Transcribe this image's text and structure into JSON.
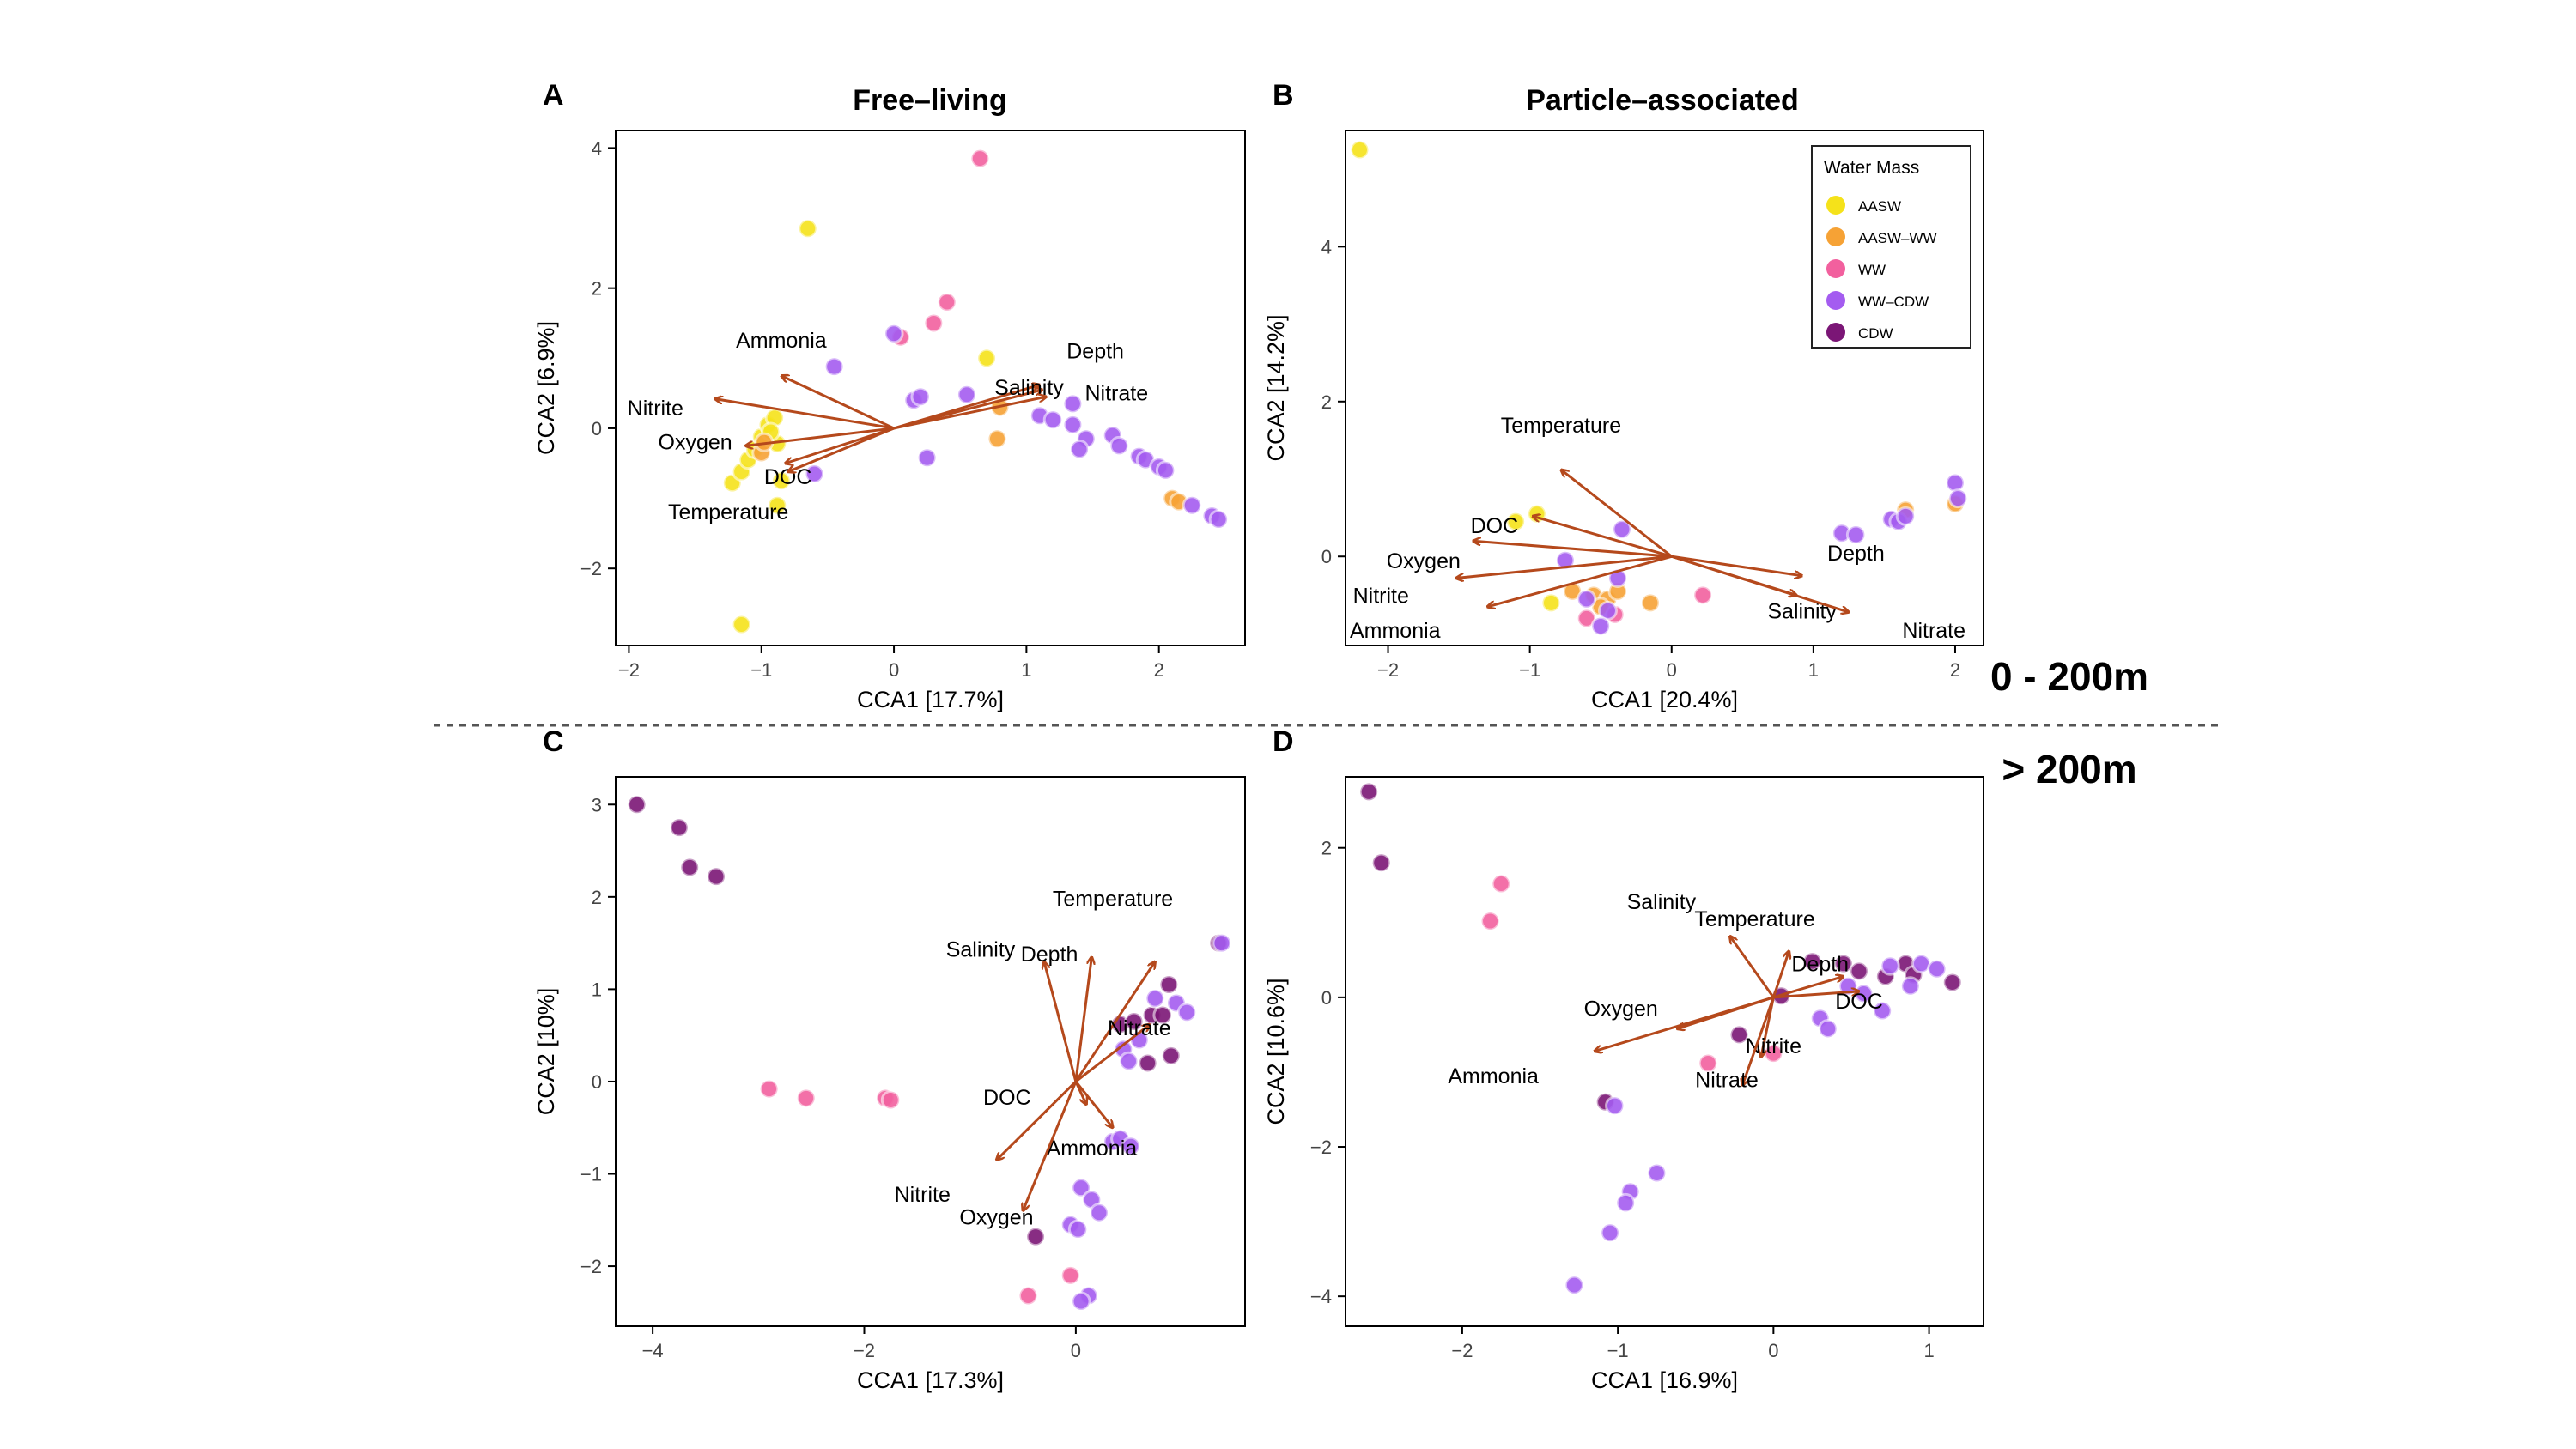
{
  "figure": {
    "column_titles": [
      "Free–living",
      "Particle–associated"
    ],
    "depth_labels": [
      "0 - 200m",
      "> 200m"
    ]
  },
  "legend": {
    "title": "Water Mass",
    "placement": "top-right of panel B",
    "entries": [
      {
        "label": "AASW",
        "color": "#f5e21a"
      },
      {
        "label": "AASW–WW",
        "color": "#f6a235"
      },
      {
        "label": "WW",
        "color": "#f2609e"
      },
      {
        "label": "WW–CDW",
        "color": "#a45cf0"
      },
      {
        "label": "CDW",
        "color": "#7b1676"
      }
    ]
  },
  "chart_data": [
    {
      "panel": "A",
      "type": "scatter",
      "xlabel": "CCA1   [17.7%]",
      "ylabel": "CCA2   [6.9%]",
      "xlim": [
        -2.1,
        2.65
      ],
      "ylim": [
        -3.1,
        4.25
      ],
      "xticks": [
        -2,
        -1,
        0,
        1,
        2
      ],
      "yticks": [
        -2,
        0,
        2,
        4
      ],
      "points": [
        {
          "x": -1.22,
          "y": -0.78,
          "g": "AASW"
        },
        {
          "x": -1.15,
          "y": -0.62,
          "g": "AASW"
        },
        {
          "x": -1.1,
          "y": -0.45,
          "g": "AASW"
        },
        {
          "x": -1.05,
          "y": -0.3,
          "g": "AASW"
        },
        {
          "x": -1.0,
          "y": -0.12,
          "g": "AASW"
        },
        {
          "x": -0.95,
          "y": 0.05,
          "g": "AASW"
        },
        {
          "x": -0.9,
          "y": 0.15,
          "g": "AASW"
        },
        {
          "x": -0.88,
          "y": -0.22,
          "g": "AASW"
        },
        {
          "x": -0.93,
          "y": -0.05,
          "g": "AASW"
        },
        {
          "x": -0.88,
          "y": -1.1,
          "g": "AASW"
        },
        {
          "x": -0.85,
          "y": -0.75,
          "g": "AASW"
        },
        {
          "x": -1.15,
          "y": -2.8,
          "g": "AASW"
        },
        {
          "x": -0.65,
          "y": 2.85,
          "g": "AASW"
        },
        {
          "x": 0.7,
          "y": 1.0,
          "g": "AASW"
        },
        {
          "x": -1.0,
          "y": -0.35,
          "g": "AASW-WW"
        },
        {
          "x": -0.98,
          "y": -0.2,
          "g": "AASW-WW"
        },
        {
          "x": 0.8,
          "y": 0.3,
          "g": "AASW-WW"
        },
        {
          "x": 0.78,
          "y": -0.15,
          "g": "AASW-WW"
        },
        {
          "x": 2.1,
          "y": -1.0,
          "g": "AASW-WW"
        },
        {
          "x": 2.15,
          "y": -1.05,
          "g": "AASW-WW"
        },
        {
          "x": 0.65,
          "y": 3.85,
          "g": "WW"
        },
        {
          "x": 0.4,
          "y": 1.8,
          "g": "WW"
        },
        {
          "x": 0.3,
          "y": 1.5,
          "g": "WW"
        },
        {
          "x": 0.05,
          "y": 1.3,
          "g": "WW"
        },
        {
          "x": -0.45,
          "y": 0.88,
          "g": "WW-CDW"
        },
        {
          "x": 0.0,
          "y": 1.35,
          "g": "WW-CDW"
        },
        {
          "x": 0.15,
          "y": 0.4,
          "g": "WW-CDW"
        },
        {
          "x": 0.2,
          "y": 0.45,
          "g": "WW-CDW"
        },
        {
          "x": 0.25,
          "y": -0.42,
          "g": "WW-CDW"
        },
        {
          "x": -0.6,
          "y": -0.65,
          "g": "WW-CDW"
        },
        {
          "x": 0.55,
          "y": 0.48,
          "g": "WW-CDW"
        },
        {
          "x": 1.1,
          "y": 0.18,
          "g": "WW-CDW"
        },
        {
          "x": 1.2,
          "y": 0.12,
          "g": "WW-CDW"
        },
        {
          "x": 1.35,
          "y": 0.05,
          "g": "WW-CDW"
        },
        {
          "x": 1.45,
          "y": -0.15,
          "g": "WW-CDW"
        },
        {
          "x": 1.65,
          "y": -0.1,
          "g": "WW-CDW"
        },
        {
          "x": 1.7,
          "y": -0.25,
          "g": "WW-CDW"
        },
        {
          "x": 1.85,
          "y": -0.4,
          "g": "WW-CDW"
        },
        {
          "x": 1.9,
          "y": -0.45,
          "g": "WW-CDW"
        },
        {
          "x": 2.0,
          "y": -0.55,
          "g": "WW-CDW"
        },
        {
          "x": 2.05,
          "y": -0.6,
          "g": "WW-CDW"
        },
        {
          "x": 2.25,
          "y": -1.1,
          "g": "WW-CDW"
        },
        {
          "x": 2.4,
          "y": -1.25,
          "g": "WW-CDW"
        },
        {
          "x": 2.45,
          "y": -1.3,
          "g": "WW-CDW"
        },
        {
          "x": 1.35,
          "y": 0.35,
          "g": "WW-CDW"
        },
        {
          "x": 1.4,
          "y": -0.3,
          "g": "WW-CDW"
        }
      ],
      "arrows": [
        {
          "name": "Ammonia",
          "x": -0.85,
          "y": 0.75,
          "lx": -0.85,
          "ly": 1.15
        },
        {
          "name": "Nitrite",
          "x": -1.35,
          "y": 0.42,
          "lx": -1.8,
          "ly": 0.18
        },
        {
          "name": "Oxygen",
          "x": -1.12,
          "y": -0.25,
          "lx": -1.5,
          "ly": -0.3
        },
        {
          "name": "DOC",
          "x": -0.82,
          "y": -0.5,
          "lx": -0.8,
          "ly": -0.8
        },
        {
          "name": "Temperature",
          "x": -0.8,
          "y": -0.62,
          "lx": -1.25,
          "ly": -1.3
        },
        {
          "name": "Depth",
          "x": 1.1,
          "y": 0.62,
          "lx": 1.52,
          "ly": 1.0
        },
        {
          "name": "Salinity",
          "x": 1.12,
          "y": 0.55,
          "lx": 1.02,
          "ly": 0.48
        },
        {
          "name": "Nitrate",
          "x": 1.15,
          "y": 0.45,
          "lx": 1.68,
          "ly": 0.4
        }
      ]
    },
    {
      "panel": "B",
      "type": "scatter",
      "xlabel": "CCA1   [20.4%]",
      "ylabel": "CCA2   [14.2%]",
      "xlim": [
        -2.3,
        2.2
      ],
      "ylim": [
        -1.15,
        5.5
      ],
      "xticks": [
        -2,
        -1,
        0,
        1,
        2
      ],
      "yticks": [
        0,
        2,
        4
      ],
      "points": [
        {
          "x": -2.2,
          "y": 5.25,
          "g": "AASW"
        },
        {
          "x": -0.95,
          "y": 0.55,
          "g": "AASW"
        },
        {
          "x": -1.1,
          "y": 0.45,
          "g": "AASW"
        },
        {
          "x": -0.85,
          "y": -0.6,
          "g": "AASW"
        },
        {
          "x": -0.7,
          "y": -0.45,
          "g": "AASW-WW"
        },
        {
          "x": -0.55,
          "y": -0.5,
          "g": "AASW-WW"
        },
        {
          "x": -0.45,
          "y": -0.55,
          "g": "AASW-WW"
        },
        {
          "x": -0.38,
          "y": -0.45,
          "g": "AASW-WW"
        },
        {
          "x": -0.15,
          "y": -0.6,
          "g": "AASW-WW"
        },
        {
          "x": -0.5,
          "y": -0.65,
          "g": "AASW-WW"
        },
        {
          "x": 1.65,
          "y": 0.6,
          "g": "AASW-WW"
        },
        {
          "x": 2.0,
          "y": 0.68,
          "g": "AASW-WW"
        },
        {
          "x": 0.22,
          "y": -0.5,
          "g": "WW"
        },
        {
          "x": -0.4,
          "y": -0.75,
          "g": "WW"
        },
        {
          "x": -0.6,
          "y": -0.8,
          "g": "WW"
        },
        {
          "x": -0.75,
          "y": -0.05,
          "g": "WW-CDW"
        },
        {
          "x": -0.35,
          "y": 0.35,
          "g": "WW-CDW"
        },
        {
          "x": -0.6,
          "y": -0.55,
          "g": "WW-CDW"
        },
        {
          "x": -0.45,
          "y": -0.7,
          "g": "WW-CDW"
        },
        {
          "x": -0.5,
          "y": -0.9,
          "g": "WW-CDW"
        },
        {
          "x": -0.38,
          "y": -0.28,
          "g": "WW-CDW"
        },
        {
          "x": 1.2,
          "y": 0.3,
          "g": "WW-CDW"
        },
        {
          "x": 1.3,
          "y": 0.28,
          "g": "WW-CDW"
        },
        {
          "x": 1.55,
          "y": 0.48,
          "g": "WW-CDW"
        },
        {
          "x": 1.6,
          "y": 0.45,
          "g": "WW-CDW"
        },
        {
          "x": 1.65,
          "y": 0.52,
          "g": "WW-CDW"
        },
        {
          "x": 2.0,
          "y": 0.95,
          "g": "WW-CDW"
        },
        {
          "x": 2.02,
          "y": 0.75,
          "g": "WW-CDW"
        }
      ],
      "arrows": [
        {
          "name": "Temperature",
          "x": -0.78,
          "y": 1.12,
          "lx": -0.78,
          "ly": 1.6
        },
        {
          "name": "DOC",
          "x": -0.98,
          "y": 0.52,
          "lx": -1.25,
          "ly": 0.3
        },
        {
          "name": "Oxygen",
          "x": -1.4,
          "y": 0.2,
          "lx": -1.75,
          "ly": -0.15
        },
        {
          "name": "Nitrite",
          "x": -1.52,
          "y": -0.28,
          "lx": -2.05,
          "ly": -0.6
        },
        {
          "name": "Ammonia",
          "x": -1.3,
          "y": -0.65,
          "lx": -1.95,
          "ly": -1.05
        },
        {
          "name": "Depth",
          "x": 0.92,
          "y": -0.25,
          "lx": 1.3,
          "ly": -0.05
        },
        {
          "name": "Salinity",
          "x": 0.88,
          "y": -0.5,
          "lx": 0.92,
          "ly": -0.8
        },
        {
          "name": "Nitrate",
          "x": 1.25,
          "y": -0.72,
          "lx": 1.85,
          "ly": -1.05
        }
      ]
    },
    {
      "panel": "C",
      "type": "scatter",
      "xlabel": "CCA1   [17.3%]",
      "ylabel": "CCA2   [10%]",
      "xlim": [
        -4.35,
        1.6
      ],
      "ylim": [
        -2.65,
        3.3
      ],
      "xticks": [
        -4,
        -2,
        0
      ],
      "yticks": [
        -2,
        -1,
        0,
        1,
        2,
        3
      ],
      "points": [
        {
          "x": -4.15,
          "y": 3.0,
          "g": "CDW"
        },
        {
          "x": -3.75,
          "y": 2.75,
          "g": "CDW"
        },
        {
          "x": -3.65,
          "y": 2.32,
          "g": "CDW"
        },
        {
          "x": -3.4,
          "y": 2.22,
          "g": "CDW"
        },
        {
          "x": 0.42,
          "y": 0.62,
          "g": "CDW"
        },
        {
          "x": 0.55,
          "y": 0.65,
          "g": "CDW"
        },
        {
          "x": 0.72,
          "y": 0.72,
          "g": "CDW"
        },
        {
          "x": 0.82,
          "y": 0.72,
          "g": "CDW"
        },
        {
          "x": 0.88,
          "y": 1.05,
          "g": "CDW"
        },
        {
          "x": 0.9,
          "y": 0.28,
          "g": "CDW"
        },
        {
          "x": 1.35,
          "y": 1.5,
          "g": "CDW"
        },
        {
          "x": 0.68,
          "y": 0.2,
          "g": "CDW"
        },
        {
          "x": -0.38,
          "y": -1.68,
          "g": "CDW"
        },
        {
          "x": -2.9,
          "y": -0.08,
          "g": "WW"
        },
        {
          "x": -2.55,
          "y": -0.18,
          "g": "WW"
        },
        {
          "x": -1.8,
          "y": -0.18,
          "g": "WW"
        },
        {
          "x": -1.75,
          "y": -0.2,
          "g": "WW"
        },
        {
          "x": -0.05,
          "y": -2.1,
          "g": "WW"
        },
        {
          "x": -0.45,
          "y": -2.32,
          "g": "WW"
        },
        {
          "x": 0.35,
          "y": -0.65,
          "g": "WW-CDW"
        },
        {
          "x": 0.42,
          "y": -0.62,
          "g": "WW-CDW"
        },
        {
          "x": 0.52,
          "y": -0.7,
          "g": "WW-CDW"
        },
        {
          "x": 0.45,
          "y": 0.35,
          "g": "WW-CDW"
        },
        {
          "x": 0.5,
          "y": 0.22,
          "g": "WW-CDW"
        },
        {
          "x": 0.6,
          "y": 0.45,
          "g": "WW-CDW"
        },
        {
          "x": 0.95,
          "y": 0.85,
          "g": "WW-CDW"
        },
        {
          "x": 1.05,
          "y": 0.75,
          "g": "WW-CDW"
        },
        {
          "x": 0.75,
          "y": 0.9,
          "g": "WW-CDW"
        },
        {
          "x": 0.05,
          "y": -1.15,
          "g": "WW-CDW"
        },
        {
          "x": 0.15,
          "y": -1.28,
          "g": "WW-CDW"
        },
        {
          "x": 0.22,
          "y": -1.42,
          "g": "WW-CDW"
        },
        {
          "x": -0.05,
          "y": -1.55,
          "g": "WW-CDW"
        },
        {
          "x": 0.02,
          "y": -1.6,
          "g": "WW-CDW"
        },
        {
          "x": 0.12,
          "y": -2.32,
          "g": "WW-CDW"
        },
        {
          "x": 0.05,
          "y": -2.38,
          "g": "WW-CDW"
        },
        {
          "x": 1.38,
          "y": 1.5,
          "g": "WW-CDW"
        }
      ],
      "arrows": [
        {
          "name": "Temperature",
          "x": 0.75,
          "y": 1.3,
          "lx": 0.35,
          "ly": 1.9
        },
        {
          "name": "Salinity",
          "x": -0.3,
          "y": 1.3,
          "lx": -0.9,
          "ly": 1.35
        },
        {
          "name": "Depth",
          "x": 0.15,
          "y": 1.35,
          "lx": -0.25,
          "ly": 1.3
        },
        {
          "name": "Nitrate",
          "x": 0.7,
          "y": 0.62,
          "lx": 0.6,
          "ly": 0.5
        },
        {
          "name": "DOC",
          "x": 0.1,
          "y": -0.25,
          "lx": -0.65,
          "ly": -0.25
        },
        {
          "name": "Ammonia",
          "x": 0.35,
          "y": -0.5,
          "lx": 0.15,
          "ly": -0.8
        },
        {
          "name": "Nitrite",
          "x": -0.75,
          "y": -0.85,
          "lx": -1.45,
          "ly": -1.3
        },
        {
          "name": "Oxygen",
          "x": -0.5,
          "y": -1.4,
          "lx": -0.75,
          "ly": -1.55
        }
      ]
    },
    {
      "panel": "D",
      "type": "scatter",
      "xlabel": "CCA1   [16.9%]",
      "ylabel": "CCA2   [10.6%]",
      "xlim": [
        -2.75,
        1.35
      ],
      "ylim": [
        -4.4,
        2.95
      ],
      "xticks": [
        -2,
        -1,
        0,
        1
      ],
      "yticks": [
        -4,
        -2,
        0,
        2
      ],
      "points": [
        {
          "x": -2.6,
          "y": 2.75,
          "g": "CDW"
        },
        {
          "x": -2.52,
          "y": 1.8,
          "g": "CDW"
        },
        {
          "x": -1.08,
          "y": -1.4,
          "g": "CDW"
        },
        {
          "x": -0.22,
          "y": -0.5,
          "g": "CDW"
        },
        {
          "x": 0.05,
          "y": 0.02,
          "g": "CDW"
        },
        {
          "x": 0.25,
          "y": 0.48,
          "g": "CDW"
        },
        {
          "x": 0.45,
          "y": 0.45,
          "g": "CDW"
        },
        {
          "x": 0.55,
          "y": 0.35,
          "g": "CDW"
        },
        {
          "x": 0.72,
          "y": 0.28,
          "g": "CDW"
        },
        {
          "x": 0.85,
          "y": 0.45,
          "g": "CDW"
        },
        {
          "x": 0.9,
          "y": 0.3,
          "g": "CDW"
        },
        {
          "x": 1.15,
          "y": 0.2,
          "g": "CDW"
        },
        {
          "x": -1.75,
          "y": 1.52,
          "g": "WW"
        },
        {
          "x": -1.82,
          "y": 1.02,
          "g": "WW"
        },
        {
          "x": -0.42,
          "y": -0.88,
          "g": "WW"
        },
        {
          "x": 0.0,
          "y": -0.75,
          "g": "WW"
        },
        {
          "x": -1.02,
          "y": -1.45,
          "g": "WW-CDW"
        },
        {
          "x": -0.75,
          "y": -2.35,
          "g": "WW-CDW"
        },
        {
          "x": -0.92,
          "y": -2.6,
          "g": "WW-CDW"
        },
        {
          "x": -0.95,
          "y": -2.75,
          "g": "WW-CDW"
        },
        {
          "x": -1.05,
          "y": -3.15,
          "g": "WW-CDW"
        },
        {
          "x": -1.28,
          "y": -3.85,
          "g": "WW-CDW"
        },
        {
          "x": 0.3,
          "y": -0.28,
          "g": "WW-CDW"
        },
        {
          "x": 0.35,
          "y": -0.42,
          "g": "WW-CDW"
        },
        {
          "x": 0.48,
          "y": 0.15,
          "g": "WW-CDW"
        },
        {
          "x": 0.58,
          "y": 0.05,
          "g": "WW-CDW"
        },
        {
          "x": 0.7,
          "y": -0.18,
          "g": "WW-CDW"
        },
        {
          "x": 0.88,
          "y": 0.15,
          "g": "WW-CDW"
        },
        {
          "x": 0.95,
          "y": 0.45,
          "g": "WW-CDW"
        },
        {
          "x": 1.05,
          "y": 0.38,
          "g": "WW-CDW"
        },
        {
          "x": 0.75,
          "y": 0.42,
          "g": "WW-CDW"
        }
      ],
      "arrows": [
        {
          "name": "Salinity",
          "x": -0.28,
          "y": 0.82,
          "lx": -0.72,
          "ly": 1.18
        },
        {
          "name": "Temperature",
          "x": 0.1,
          "y": 0.62,
          "lx": -0.12,
          "ly": 0.95
        },
        {
          "name": "Depth",
          "x": 0.45,
          "y": 0.28,
          "lx": 0.3,
          "ly": 0.35
        },
        {
          "name": "DOC",
          "x": 0.55,
          "y": 0.08,
          "lx": 0.55,
          "ly": -0.15
        },
        {
          "name": "Oxygen",
          "x": -0.62,
          "y": -0.42,
          "lx": -0.98,
          "ly": -0.25
        },
        {
          "name": "Ammonia",
          "x": -1.15,
          "y": -0.72,
          "lx": -1.8,
          "ly": -1.15
        },
        {
          "name": "Nitrite",
          "x": -0.08,
          "y": -0.8,
          "lx": 0.0,
          "ly": -0.75
        },
        {
          "name": "Nitrate",
          "x": -0.2,
          "y": -1.18,
          "lx": -0.3,
          "ly": -1.2
        }
      ]
    }
  ]
}
